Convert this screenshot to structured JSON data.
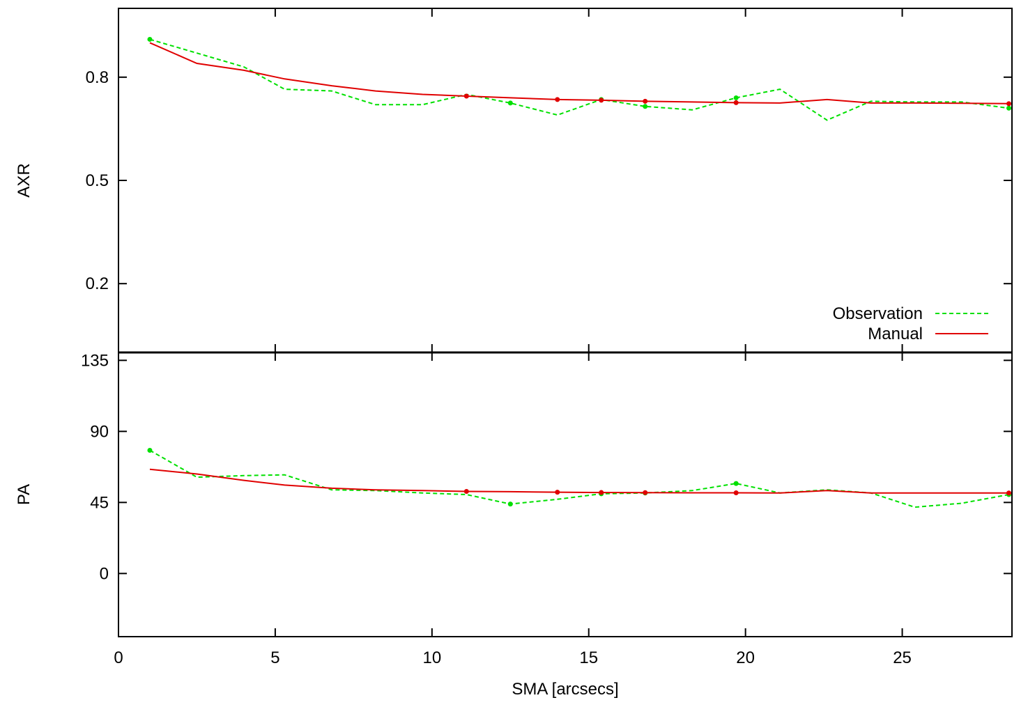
{
  "chart_data": [
    {
      "panel": "top",
      "type": "line",
      "xlabel": "",
      "ylabel": "AXR",
      "xlim": [
        0,
        28.5
      ],
      "ylim": [
        0.0,
        1.0
      ],
      "yticks": [
        0.2,
        0.5,
        0.8
      ],
      "ytick_labels": [
        "0.2",
        "0.5",
        "0.8"
      ],
      "legend_position": "bottom-right",
      "series": [
        {
          "name": "Observation",
          "color": "#00e000",
          "style": "dashed",
          "x": [
            1.0,
            2.5,
            4.0,
            5.3,
            6.8,
            8.2,
            9.7,
            11.1,
            12.5,
            14.0,
            15.4,
            16.8,
            18.3,
            19.7,
            21.1,
            22.6,
            24.0,
            25.4,
            26.9,
            28.4
          ],
          "y": [
            0.91,
            0.87,
            0.83,
            0.765,
            0.76,
            0.72,
            0.72,
            0.75,
            0.725,
            0.69,
            0.735,
            0.715,
            0.705,
            0.74,
            0.765,
            0.675,
            0.73,
            0.728,
            0.728,
            0.71
          ],
          "markers": [
            true,
            false,
            false,
            false,
            false,
            false,
            false,
            false,
            true,
            false,
            true,
            true,
            false,
            true,
            false,
            false,
            false,
            false,
            false,
            true
          ]
        },
        {
          "name": "Manual",
          "color": "#e00000",
          "style": "solid",
          "x": [
            1.0,
            2.5,
            4.0,
            5.3,
            6.8,
            8.2,
            9.7,
            11.1,
            12.5,
            14.0,
            15.4,
            16.8,
            18.3,
            19.7,
            21.1,
            22.6,
            24.0,
            25.4,
            26.9,
            28.4
          ],
          "y": [
            0.9,
            0.84,
            0.82,
            0.795,
            0.775,
            0.76,
            0.75,
            0.745,
            0.74,
            0.735,
            0.733,
            0.73,
            0.728,
            0.726,
            0.725,
            0.735,
            0.725,
            0.725,
            0.724,
            0.723
          ],
          "markers": [
            false,
            false,
            false,
            false,
            false,
            false,
            false,
            true,
            false,
            true,
            true,
            true,
            false,
            true,
            false,
            false,
            false,
            false,
            false,
            true
          ]
        }
      ]
    },
    {
      "panel": "bottom",
      "type": "line",
      "xlabel": "SMA [arcsecs]",
      "ylabel": "PA",
      "xlim": [
        0,
        28.5
      ],
      "ylim": [
        -40,
        140
      ],
      "yticks": [
        0,
        45,
        90,
        135
      ],
      "ytick_labels": [
        "0",
        "45",
        "90",
        "135"
      ],
      "xticks": [
        0,
        5,
        10,
        15,
        20,
        25
      ],
      "xtick_labels": [
        "0",
        "5",
        "10",
        "15",
        "20",
        "25"
      ],
      "series": [
        {
          "name": "Observation",
          "color": "#00e000",
          "style": "dashed",
          "x": [
            1.0,
            2.5,
            4.0,
            5.3,
            6.8,
            8.2,
            9.7,
            11.1,
            12.5,
            14.0,
            15.4,
            16.8,
            18.3,
            19.7,
            21.1,
            22.6,
            24.0,
            25.4,
            26.9,
            28.4
          ],
          "y": [
            78,
            61,
            62,
            62.5,
            53,
            52.5,
            51,
            50,
            44,
            47,
            50.5,
            51,
            52.5,
            57,
            51,
            53,
            51,
            42,
            44.5,
            50
          ],
          "markers": [
            true,
            false,
            false,
            false,
            false,
            false,
            false,
            false,
            true,
            false,
            true,
            true,
            false,
            true,
            false,
            false,
            false,
            false,
            false,
            true
          ]
        },
        {
          "name": "Manual",
          "color": "#e00000",
          "style": "solid",
          "x": [
            1.0,
            2.5,
            4.0,
            5.3,
            6.8,
            8.2,
            9.7,
            11.1,
            12.5,
            14.0,
            15.4,
            16.8,
            18.3,
            19.7,
            21.1,
            22.6,
            24.0,
            25.4,
            26.9,
            28.4
          ],
          "y": [
            66,
            63,
            59,
            56,
            54,
            53,
            52.5,
            52,
            51.8,
            51.5,
            51.3,
            51.2,
            51.1,
            51.1,
            51.0,
            52.5,
            51,
            51,
            51,
            51
          ],
          "markers": [
            false,
            false,
            false,
            false,
            false,
            false,
            false,
            true,
            false,
            true,
            true,
            true,
            false,
            true,
            false,
            false,
            false,
            false,
            false,
            true
          ]
        }
      ]
    }
  ]
}
